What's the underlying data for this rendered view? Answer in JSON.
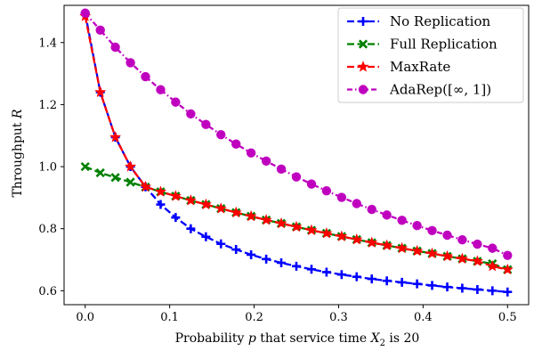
{
  "chart_data": {
    "type": "line",
    "xlabel": "Probability p that service time X2 is 20",
    "xlabel_parts": {
      "pre": "Probability ",
      "p": "p",
      "mid": " that service time ",
      "X": "X",
      "sub": "2",
      "post": " is 20"
    },
    "ylabel": "Throughput R",
    "ylabel_parts": {
      "pre": "Throughput ",
      "R": "R"
    },
    "xlim": [
      -0.025,
      0.525
    ],
    "ylim": [
      0.555,
      1.52
    ],
    "xticks": [
      0.0,
      0.1,
      0.2,
      0.3,
      0.4,
      0.5
    ],
    "xtick_labels": [
      "0.0",
      "0.1",
      "0.2",
      "0.3",
      "0.4",
      "0.5"
    ],
    "yticks": [
      0.6,
      0.8,
      1.0,
      1.2,
      1.4
    ],
    "ytick_labels": [
      "0.6",
      "0.8",
      "1.0",
      "1.2",
      "1.4"
    ],
    "grid": false,
    "legend_position": "top-right",
    "x": [
      0.0,
      0.0179,
      0.0357,
      0.0536,
      0.0714,
      0.0893,
      0.1071,
      0.125,
      0.1429,
      0.1607,
      0.1786,
      0.1964,
      0.2143,
      0.2321,
      0.25,
      0.2679,
      0.2857,
      0.3036,
      0.3214,
      0.3393,
      0.3571,
      0.375,
      0.3929,
      0.4107,
      0.4286,
      0.4464,
      0.4643,
      0.4821,
      0.5
    ],
    "series": [
      {
        "name": "No Replication",
        "color": "#0000ff",
        "marker": "plus",
        "linestyle": "dashed",
        "values": [
          1.495,
          1.24,
          1.095,
          1.0,
          0.935,
          0.878,
          0.836,
          0.8,
          0.774,
          0.751,
          0.733,
          0.716,
          0.702,
          0.69,
          0.679,
          0.669,
          0.66,
          0.652,
          0.645,
          0.638,
          0.632,
          0.627,
          0.622,
          0.617,
          0.612,
          0.608,
          0.604,
          0.6,
          0.596
        ]
      },
      {
        "name": "Full Replication",
        "color": "#008000",
        "marker": "x",
        "linestyle": "dashed",
        "values": [
          1.0,
          0.98,
          0.965,
          0.95,
          0.934,
          0.919,
          0.905,
          0.891,
          0.878,
          0.865,
          0.852,
          0.84,
          0.828,
          0.817,
          0.806,
          0.795,
          0.785,
          0.775,
          0.765,
          0.755,
          0.746,
          0.737,
          0.728,
          0.72,
          0.711,
          0.703,
          0.695,
          0.687,
          0.668
        ]
      },
      {
        "name": "MaxRate",
        "color": "#ff0000",
        "marker": "star",
        "linestyle": "dashed",
        "values": [
          1.485,
          1.24,
          1.095,
          1.0,
          0.935,
          0.919,
          0.905,
          0.891,
          0.878,
          0.865,
          0.852,
          0.84,
          0.828,
          0.817,
          0.806,
          0.795,
          0.785,
          0.775,
          0.765,
          0.755,
          0.746,
          0.737,
          0.728,
          0.72,
          0.711,
          0.703,
          0.695,
          0.679,
          0.668
        ]
      },
      {
        "name": "AdaRep([∞, 1])",
        "color": "#bf00bf",
        "marker": "circle",
        "linestyle": "dashdot",
        "values": [
          1.495,
          1.44,
          1.385,
          1.335,
          1.29,
          1.248,
          1.208,
          1.17,
          1.136,
          1.103,
          1.073,
          1.044,
          1.018,
          0.992,
          0.967,
          0.944,
          0.922,
          0.901,
          0.881,
          0.862,
          0.844,
          0.827,
          0.81,
          0.794,
          0.779,
          0.764,
          0.75,
          0.737,
          0.714
        ]
      }
    ]
  }
}
